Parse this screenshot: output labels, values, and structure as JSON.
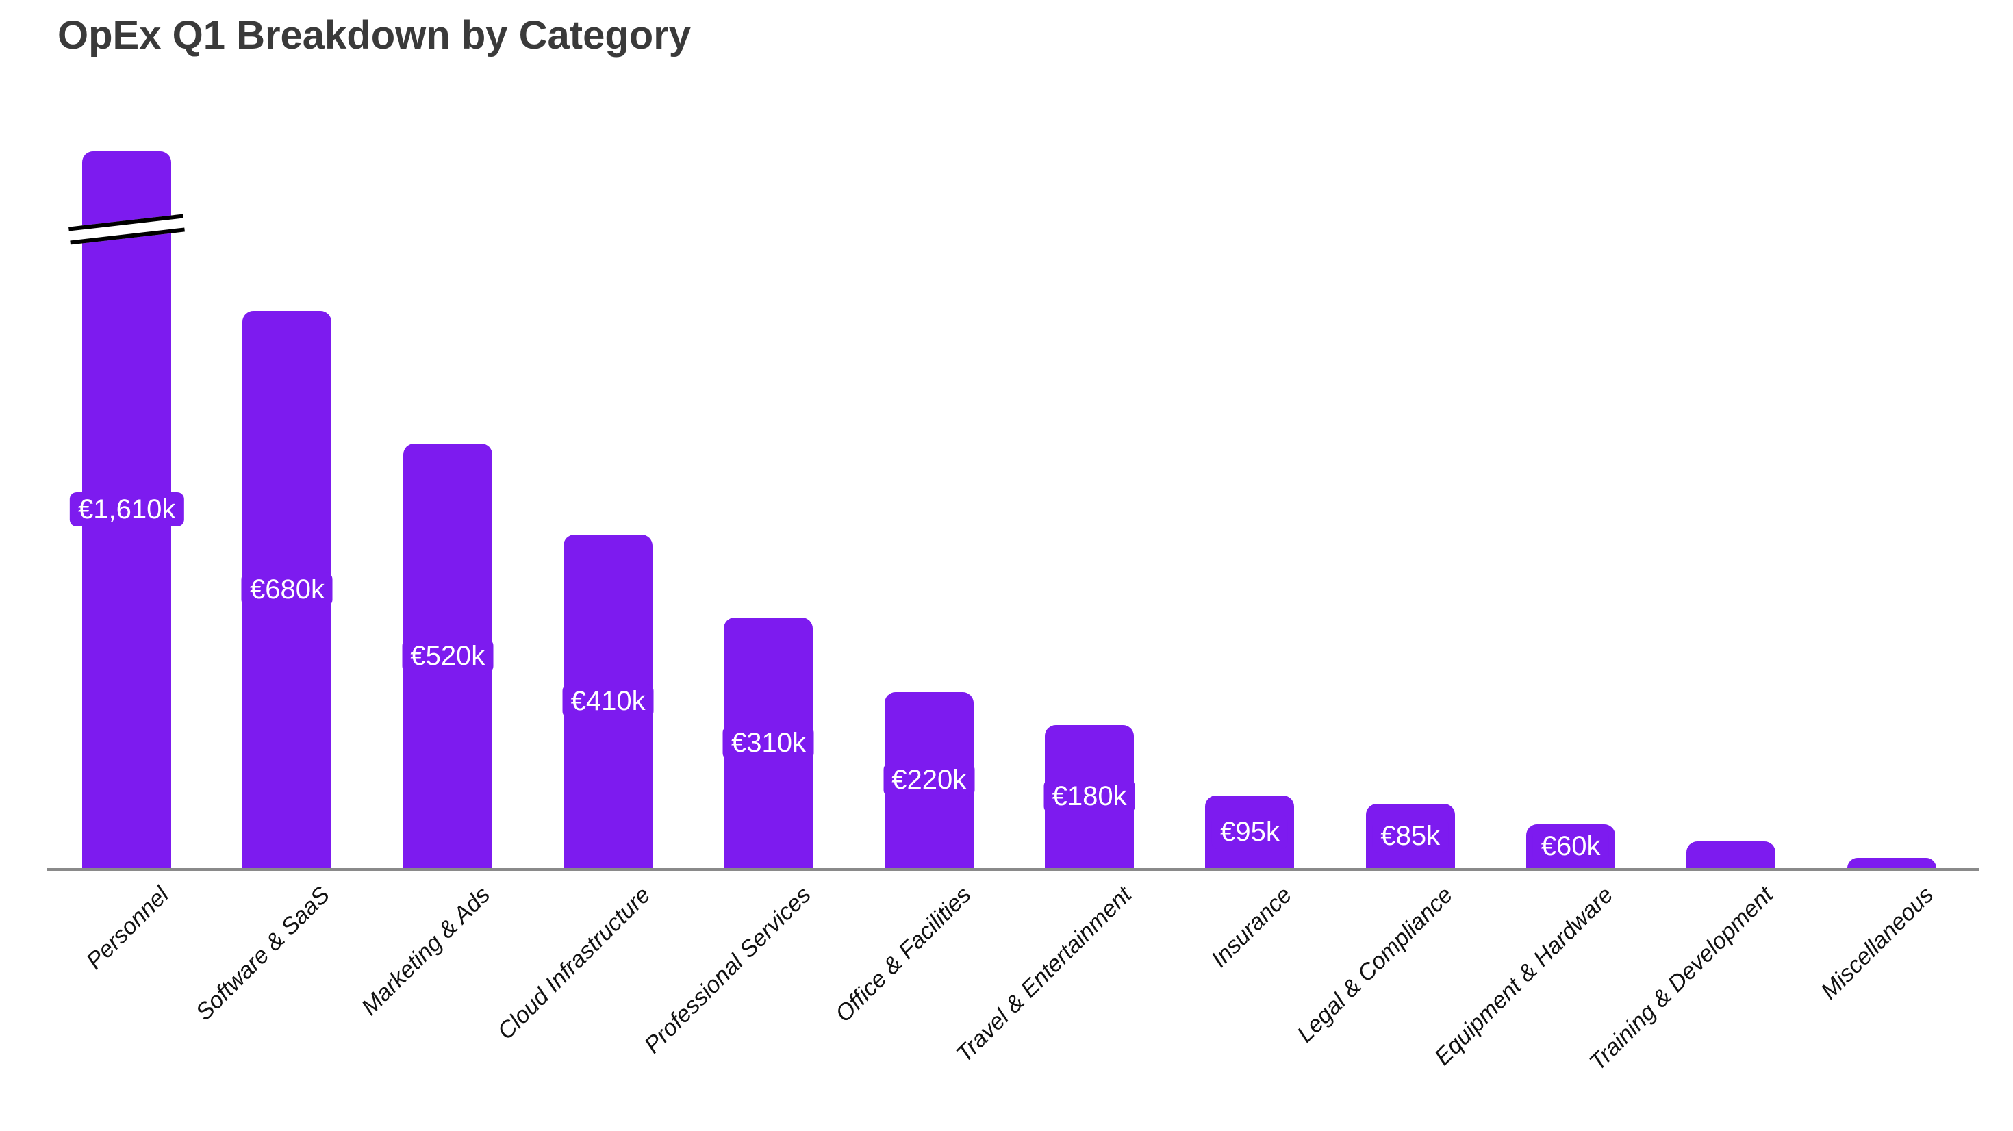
{
  "title": "OpEx Q1 Breakdown by Category",
  "chart_data": {
    "type": "bar",
    "title": "OpEx Q1 Breakdown by Category",
    "xlabel": "",
    "ylabel": "",
    "grid": false,
    "legend": "none",
    "currency_unit": "thousand EUR (k)",
    "categories": [
      "Personnel",
      "Software & SaaS",
      "Marketing & Ads",
      "Cloud Infrastructure",
      "Professional Services",
      "Office & Facilities",
      "Travel & Entertainment",
      "Insurance",
      "Legal & Compliance",
      "Equipment & Hardware",
      "Training & Development",
      "Miscellaneous"
    ],
    "values": [
      1610,
      680,
      520,
      410,
      310,
      220,
      180,
      95,
      85,
      60,
      40,
      20
    ],
    "value_labels": [
      "€1,610k",
      "€680k",
      "€520k",
      "€410k",
      "€310k",
      "€220k",
      "€180k",
      "€95k",
      "€85k",
      "€60k",
      "",
      ""
    ],
    "axis_break_index": 0,
    "bar_color": "#7d1bef",
    "value_label_text_color": "#ffffff",
    "axis_line_color": "#8a8a8a",
    "title_color": "#3a3a3a",
    "tick_label_color": "#111111"
  },
  "layout_note_values_without_labels_estimated": [
    40,
    20
  ]
}
